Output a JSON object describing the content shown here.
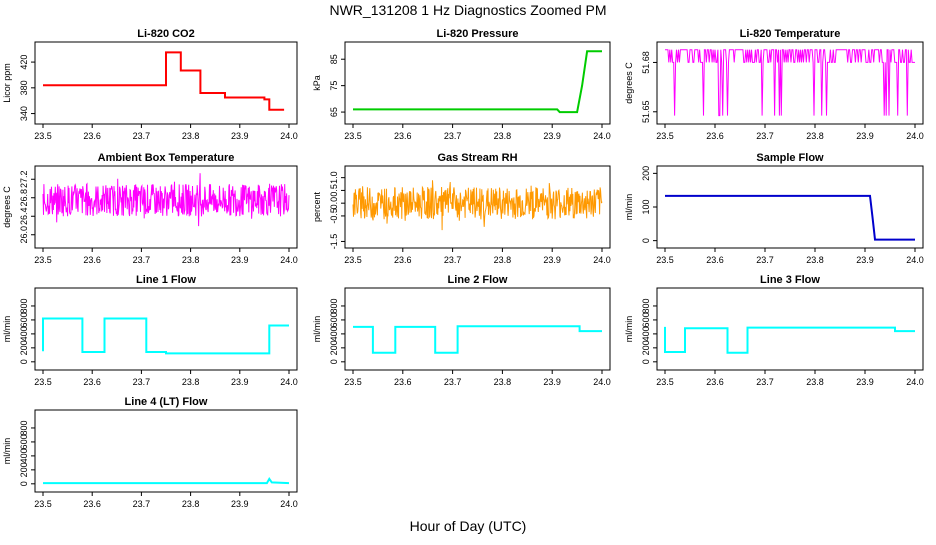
{
  "page": {
    "title": "NWR_131208  1 Hz Diagnostics Zoomed PM",
    "xlabel": "Hour of Day (UTC)"
  },
  "chart_data": [
    {
      "type": "line",
      "title": "Li-820 CO2",
      "ylabel": "Licor ppm",
      "color": "#ff0000",
      "xlim": [
        23.5,
        24.0
      ],
      "ylim": [
        330,
        445
      ],
      "xticks": [
        "23.5",
        "23.6",
        "23.7",
        "23.8",
        "23.9",
        "24.0"
      ],
      "yticks": [
        340,
        380,
        420
      ],
      "ytick_labels": [
        "340",
        "380",
        "420"
      ],
      "style": "step",
      "series": [
        {
          "x": [
            23.5,
            23.75,
            23.75,
            23.78,
            23.78,
            23.82,
            23.82,
            23.87,
            23.87,
            23.95,
            23.95,
            23.96,
            23.96,
            23.99
          ],
          "y": [
            384,
            384,
            435,
            435,
            407,
            407,
            372,
            372,
            365,
            365,
            362,
            362,
            346,
            346
          ]
        }
      ]
    },
    {
      "type": "line",
      "title": "Li-820 Pressure",
      "ylabel": "kPa",
      "color": "#00cc00",
      "xlim": [
        23.5,
        24.0
      ],
      "ylim": [
        62,
        90
      ],
      "xticks": [
        "23.5",
        "23.6",
        "23.7",
        "23.8",
        "23.9",
        "24.0"
      ],
      "yticks": [
        65,
        75,
        85
      ],
      "ytick_labels": [
        "65",
        "75",
        "85"
      ],
      "style": "line",
      "series": [
        {
          "x": [
            23.5,
            23.91,
            23.915,
            23.95,
            23.96,
            23.97,
            23.98,
            24.0
          ],
          "y": [
            66,
            66,
            65,
            65,
            75,
            88,
            88,
            88
          ]
        }
      ]
    },
    {
      "type": "line",
      "title": "Li-820 Temperature",
      "ylabel": "degrees C",
      "color": "#ff00ff",
      "xlim": [
        23.5,
        24.0
      ],
      "ylim": [
        51.645,
        51.69
      ],
      "xticks": [
        "23.5",
        "23.6",
        "23.7",
        "23.8",
        "23.9",
        "24.0"
      ],
      "yticks": [
        51.65,
        51.68
      ],
      "ytick_labels": [
        "51.65",
        "51.68"
      ],
      "style": "flicker",
      "series": [
        {
          "x": [
            23.5,
            24.0
          ],
          "y": [
            51.68,
            51.68
          ]
        }
      ]
    },
    {
      "type": "line",
      "title": "Ambient Box Temperature",
      "ylabel": "degrees C",
      "color": "#ff00ff",
      "xlim": [
        23.5,
        24.0
      ],
      "ylim": [
        25.8,
        27.4
      ],
      "xticks": [
        "23.5",
        "23.6",
        "23.7",
        "23.8",
        "23.9",
        "24.0"
      ],
      "yticks": [
        26.0,
        26.4,
        26.8,
        27.2
      ],
      "ytick_labels": [
        "26.0",
        "26.4",
        "26.8",
        "27.2"
      ],
      "style": "noise",
      "series": [
        {
          "x": [
            23.5,
            24.0
          ],
          "y": [
            26.75,
            26.75
          ]
        }
      ]
    },
    {
      "type": "line",
      "title": "Gas Stream RH",
      "ylabel": "percent",
      "color": "#ff9900",
      "xlim": [
        23.5,
        24.0
      ],
      "ylim": [
        -1.6,
        1.3
      ],
      "xticks": [
        "23.5",
        "23.6",
        "23.7",
        "23.8",
        "23.9",
        "24.0"
      ],
      "yticks": [
        -1.5,
        -0.5,
        0.0,
        0.5,
        1.0
      ],
      "ytick_labels": [
        "-1.5",
        "-0.5",
        "0.0",
        "0.5",
        "1.0"
      ],
      "style": "noise",
      "series": [
        {
          "x": [
            23.5,
            24.0
          ],
          "y": [
            0.0,
            0.0
          ]
        }
      ]
    },
    {
      "type": "line",
      "title": "Sample Flow",
      "ylabel": "ml/min",
      "color": "#0000cc",
      "xlim": [
        23.5,
        24.0
      ],
      "ylim": [
        -10,
        210
      ],
      "xticks": [
        "23.5",
        "23.6",
        "23.7",
        "23.8",
        "23.9",
        "24.0"
      ],
      "yticks": [
        0,
        100,
        200
      ],
      "ytick_labels": [
        "0",
        "100",
        "200"
      ],
      "style": "line",
      "series": [
        {
          "x": [
            23.5,
            23.91,
            23.915,
            23.92,
            24.0
          ],
          "y": [
            133,
            133,
            70,
            3,
            3
          ]
        }
      ]
    },
    {
      "type": "line",
      "title": "Line 1 Flow",
      "ylabel": "ml/min",
      "color": "#00ffff",
      "xlim": [
        23.5,
        24.0
      ],
      "ylim": [
        -60,
        1000
      ],
      "xticks": [
        "23.5",
        "23.6",
        "23.7",
        "23.8",
        "23.9",
        "24.0"
      ],
      "yticks": [
        0,
        200,
        400,
        600,
        800
      ],
      "ytick_labels": [
        "0",
        "200",
        "400",
        "600",
        "800"
      ],
      "style": "step",
      "series": [
        {
          "x": [
            23.5,
            23.5,
            23.58,
            23.58,
            23.625,
            23.625,
            23.71,
            23.71,
            23.75,
            23.75,
            23.96,
            23.96,
            24.0
          ],
          "y": [
            150,
            620,
            620,
            140,
            140,
            620,
            620,
            140,
            140,
            120,
            120,
            520,
            520
          ]
        }
      ]
    },
    {
      "type": "line",
      "title": "Line 2 Flow",
      "ylabel": "ml/min",
      "color": "#00ffff",
      "xlim": [
        23.5,
        24.0
      ],
      "ylim": [
        -60,
        1000
      ],
      "xticks": [
        "23.5",
        "23.6",
        "23.7",
        "23.8",
        "23.9",
        "24.0"
      ],
      "yticks": [
        0,
        200,
        400,
        600,
        800
      ],
      "ytick_labels": [
        "0",
        "200",
        "400",
        "600",
        "800"
      ],
      "style": "step",
      "series": [
        {
          "x": [
            23.5,
            23.54,
            23.54,
            23.585,
            23.585,
            23.665,
            23.665,
            23.71,
            23.71,
            23.955,
            23.955,
            24.0
          ],
          "y": [
            500,
            500,
            130,
            130,
            500,
            500,
            130,
            130,
            510,
            510,
            440,
            440
          ]
        }
      ]
    },
    {
      "type": "line",
      "title": "Line 3 Flow",
      "ylabel": "ml/min",
      "color": "#00ffff",
      "xlim": [
        23.5,
        24.0
      ],
      "ylim": [
        -60,
        1000
      ],
      "xticks": [
        "23.5",
        "23.6",
        "23.7",
        "23.8",
        "23.9",
        "24.0"
      ],
      "yticks": [
        0,
        200,
        400,
        600,
        800
      ],
      "ytick_labels": [
        "0",
        "200",
        "400",
        "600",
        "800"
      ],
      "style": "step",
      "series": [
        {
          "x": [
            23.5,
            23.5,
            23.54,
            23.54,
            23.625,
            23.625,
            23.665,
            23.665,
            23.96,
            23.96,
            24.0
          ],
          "y": [
            500,
            140,
            140,
            480,
            480,
            130,
            130,
            490,
            490,
            440,
            440
          ]
        }
      ]
    },
    {
      "type": "line",
      "title": "Line 4 (LT) Flow",
      "ylabel": "ml/min",
      "color": "#00ffff",
      "xlim": [
        23.5,
        24.0
      ],
      "ylim": [
        -60,
        1000
      ],
      "xticks": [
        "23.5",
        "23.6",
        "23.7",
        "23.8",
        "23.9",
        "24.0"
      ],
      "yticks": [
        0,
        200,
        400,
        600,
        800
      ],
      "ytick_labels": [
        "0",
        "200",
        "400",
        "600",
        "800"
      ],
      "style": "line",
      "series": [
        {
          "x": [
            23.5,
            23.955,
            23.96,
            23.965,
            24.0
          ],
          "y": [
            10,
            10,
            70,
            20,
            10
          ]
        }
      ]
    }
  ]
}
